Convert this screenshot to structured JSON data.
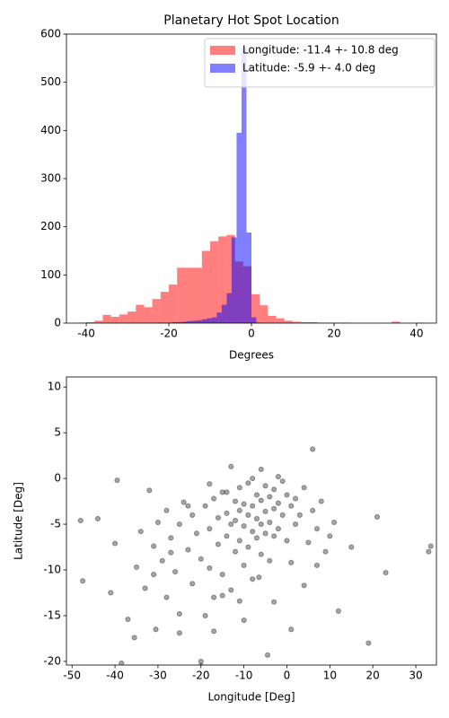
{
  "chart_data": [
    {
      "type": "histogram",
      "title": "Planetary Hot Spot Location",
      "xlabel": "Degrees",
      "xlim": [
        -44.8,
        44.8
      ],
      "ylim": [
        0,
        600
      ],
      "xticks": [
        -40,
        -20,
        0,
        20,
        40
      ],
      "yticks": [
        0,
        100,
        200,
        300,
        400,
        500,
        600
      ],
      "legend": "upper right",
      "series": [
        {
          "name": "Longitude: -11.4 +- 10.8 deg",
          "color": "#ff0000",
          "alpha": 0.5,
          "bins": [
            -42,
            -40,
            -38,
            -36,
            -34,
            -32,
            -30,
            -28,
            -26,
            -24,
            -22,
            -20,
            -18,
            -16,
            -14,
            -12,
            -10,
            -8,
            -6,
            -4,
            -2,
            0,
            2,
            4,
            6,
            8,
            10,
            12,
            14,
            16,
            18,
            20,
            22,
            24,
            26,
            28,
            30,
            32,
            34,
            36,
            38,
            40,
            42
          ],
          "values": [
            1,
            2,
            5,
            17,
            13,
            18,
            24,
            38,
            33,
            50,
            65,
            80,
            115,
            115,
            115,
            150,
            170,
            180,
            183,
            128,
            118,
            60,
            37,
            15,
            10,
            5,
            3,
            2,
            2,
            1,
            1,
            1,
            1,
            0,
            0,
            0,
            0,
            0,
            3,
            0,
            0,
            1
          ]
        },
        {
          "name": "Latitude: -5.9 +- 4.0 deg",
          "color": "#0000ff",
          "alpha": 0.5,
          "bins": [
            -22.8,
            -21.6,
            -20.4,
            -19.2,
            -18,
            -16.8,
            -15.6,
            -14.4,
            -13.2,
            -12,
            -10.8,
            -9.6,
            -8.4,
            -7.2,
            -6,
            -4.8,
            -3.6,
            -2.4,
            -1.2,
            0,
            1.2,
            2.4
          ],
          "values": [
            1,
            0,
            1,
            2,
            2,
            3,
            4,
            5,
            6,
            8,
            10,
            12,
            22,
            38,
            62,
            178,
            395,
            572,
            188,
            12,
            1
          ]
        }
      ]
    },
    {
      "type": "scatter",
      "xlabel": "Longitude [Deg]",
      "ylabel": "Latitude [Deg]",
      "xlim": [
        -51.3,
        34.8
      ],
      "ylim": [
        -20.4,
        11.1
      ],
      "xticks": [
        -50,
        -40,
        -30,
        -20,
        -10,
        0,
        10,
        20,
        30
      ],
      "yticks": [
        -20,
        -15,
        -10,
        -5,
        0,
        5,
        10
      ],
      "color": "#000000",
      "alpha": 0.35,
      "x": [
        -48,
        -47.5,
        -44,
        -41,
        -40,
        -39.5,
        -38.5,
        -37,
        -35.5,
        -34,
        -33,
        -32,
        -31,
        -30,
        -30.5,
        -29,
        -28,
        -28,
        -27,
        -26,
        -25,
        -25,
        -24,
        -23,
        -22,
        -22,
        -21,
        -20,
        -20,
        -19,
        -19,
        -18,
        -18,
        -17,
        -17,
        -16,
        -16,
        -15,
        -15,
        -14,
        -14,
        -13,
        -13,
        -12,
        -12,
        -12,
        -11,
        -11,
        -11,
        -10,
        -10,
        -10,
        -9,
        -9,
        -9,
        -8,
        -8,
        -8,
        -7,
        -7,
        -7,
        -6,
        -6,
        -6,
        -5,
        -5,
        -5,
        -4,
        -4,
        -4,
        -3,
        -3,
        -3,
        -2,
        -2,
        -1,
        -1,
        0,
        0,
        1,
        1,
        2,
        2,
        3,
        4,
        5,
        6,
        6,
        7,
        8,
        9,
        10,
        11,
        12,
        15,
        19,
        21,
        23,
        33.5,
        33,
        -20,
        -13,
        -25,
        -35,
        1,
        -4.5,
        -10,
        -15,
        -2,
        -6,
        -8,
        -14,
        -18,
        -23,
        -27,
        -31,
        4,
        7,
        -3,
        -11,
        -17,
        -6.5
      ],
      "y": [
        -4.6,
        -11.2,
        -4.4,
        -12.5,
        -7.1,
        -0.2,
        -20.2,
        -15.4,
        -17.4,
        -5.8,
        -12,
        -1.3,
        -7.4,
        -4.8,
        -16.5,
        -9,
        -3.5,
        -13,
        -6.5,
        -10.2,
        -5,
        -14.8,
        -2.6,
        -7.8,
        -4,
        -11.5,
        -6,
        -8.8,
        -20,
        -3,
        -15,
        -5.5,
        -9.8,
        -2.2,
        -13,
        -4.3,
        -7.2,
        -1.5,
        -10.5,
        -3.8,
        -6.3,
        -5,
        -12.2,
        -2.5,
        -4.6,
        -8,
        -1,
        -3.5,
        -6.8,
        -2.8,
        -5.2,
        -9.5,
        -0.5,
        -4,
        -7.5,
        -3,
        -5.8,
        -11,
        -1.8,
        -4.4,
        -6.5,
        -2.4,
        -5,
        -8.3,
        -0.8,
        -3.6,
        -6,
        -2,
        -4.8,
        -9,
        -1.2,
        -3.3,
        -6.3,
        -2.7,
        -5.5,
        -0.3,
        -4,
        -1.8,
        -6.8,
        -3,
        -9.2,
        -2.2,
        -5,
        -4,
        -1,
        -7,
        3.2,
        -3.5,
        -5.5,
        -2.5,
        -8,
        -6.3,
        -4.8,
        -14.5,
        -7.5,
        -18,
        -4.2,
        -10.3,
        -7.4,
        -8,
        -20.5,
        1.3,
        -16.9,
        -9.7,
        -16.5,
        -19.3,
        -15.5,
        -12.8,
        0.2,
        1,
        0,
        -1.5,
        -0.6,
        -3,
        -8.1,
        -10.5,
        -11.7,
        -9.5,
        -13.5,
        -13.4,
        -16.7,
        -10.8
      ]
    }
  ]
}
